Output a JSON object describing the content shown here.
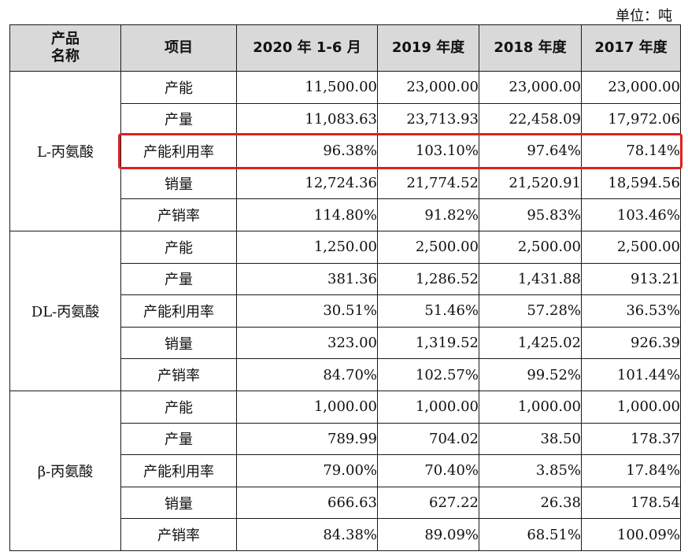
{
  "unit_label": "单位：吨",
  "columns": {
    "name_line1": "产品",
    "name_line2": "名称",
    "item": "项目",
    "p2020h1": "2020 年 1-6 月",
    "p2019": "2019 年度",
    "p2018": "2018 年度",
    "p2017": "2017 年度"
  },
  "groups": [
    {
      "name": "L-丙氨酸",
      "rows": [
        {
          "item": "产能",
          "v": [
            "11,500.00",
            "23,000.00",
            "23,000.00",
            "23,000.00"
          ]
        },
        {
          "item": "产量",
          "v": [
            "11,083.63",
            "23,713.93",
            "22,458.09",
            "17,972.06"
          ]
        },
        {
          "item": "产能利用率",
          "v": [
            "96.38%",
            "103.10%",
            "97.64%",
            "78.14%"
          ]
        },
        {
          "item": "销量",
          "v": [
            "12,724.36",
            "21,774.52",
            "21,520.91",
            "18,594.56"
          ]
        },
        {
          "item": "产销率",
          "v": [
            "114.80%",
            "91.82%",
            "95.83%",
            "103.46%"
          ]
        }
      ]
    },
    {
      "name": "DL-丙氨酸",
      "rows": [
        {
          "item": "产能",
          "v": [
            "1,250.00",
            "2,500.00",
            "2,500.00",
            "2,500.00"
          ]
        },
        {
          "item": "产量",
          "v": [
            "381.36",
            "1,286.52",
            "1,431.88",
            "913.21"
          ]
        },
        {
          "item": "产能利用率",
          "v": [
            "30.51%",
            "51.46%",
            "57.28%",
            "36.53%"
          ]
        },
        {
          "item": "销量",
          "v": [
            "323.00",
            "1,319.52",
            "1,425.02",
            "926.39"
          ]
        },
        {
          "item": "产销率",
          "v": [
            "84.70%",
            "102.57%",
            "99.52%",
            "101.44%"
          ]
        }
      ]
    },
    {
      "name": "β-丙氨酸",
      "rows": [
        {
          "item": "产能",
          "v": [
            "1,000.00",
            "1,000.00",
            "1,000.00",
            "1,000.00"
          ]
        },
        {
          "item": "产量",
          "v": [
            "789.99",
            "704.02",
            "38.50",
            "178.37"
          ]
        },
        {
          "item": "产能利用率",
          "v": [
            "79.00%",
            "70.40%",
            "3.85%",
            "17.84%"
          ]
        },
        {
          "item": "销量",
          "v": [
            "666.63",
            "627.22",
            "26.38",
            "178.54"
          ]
        },
        {
          "item": "产销率",
          "v": [
            "84.38%",
            "89.09%",
            "68.51%",
            "100.09%"
          ]
        }
      ]
    }
  ],
  "highlight": {
    "color": "#e02020",
    "group": 0,
    "row": 2
  }
}
